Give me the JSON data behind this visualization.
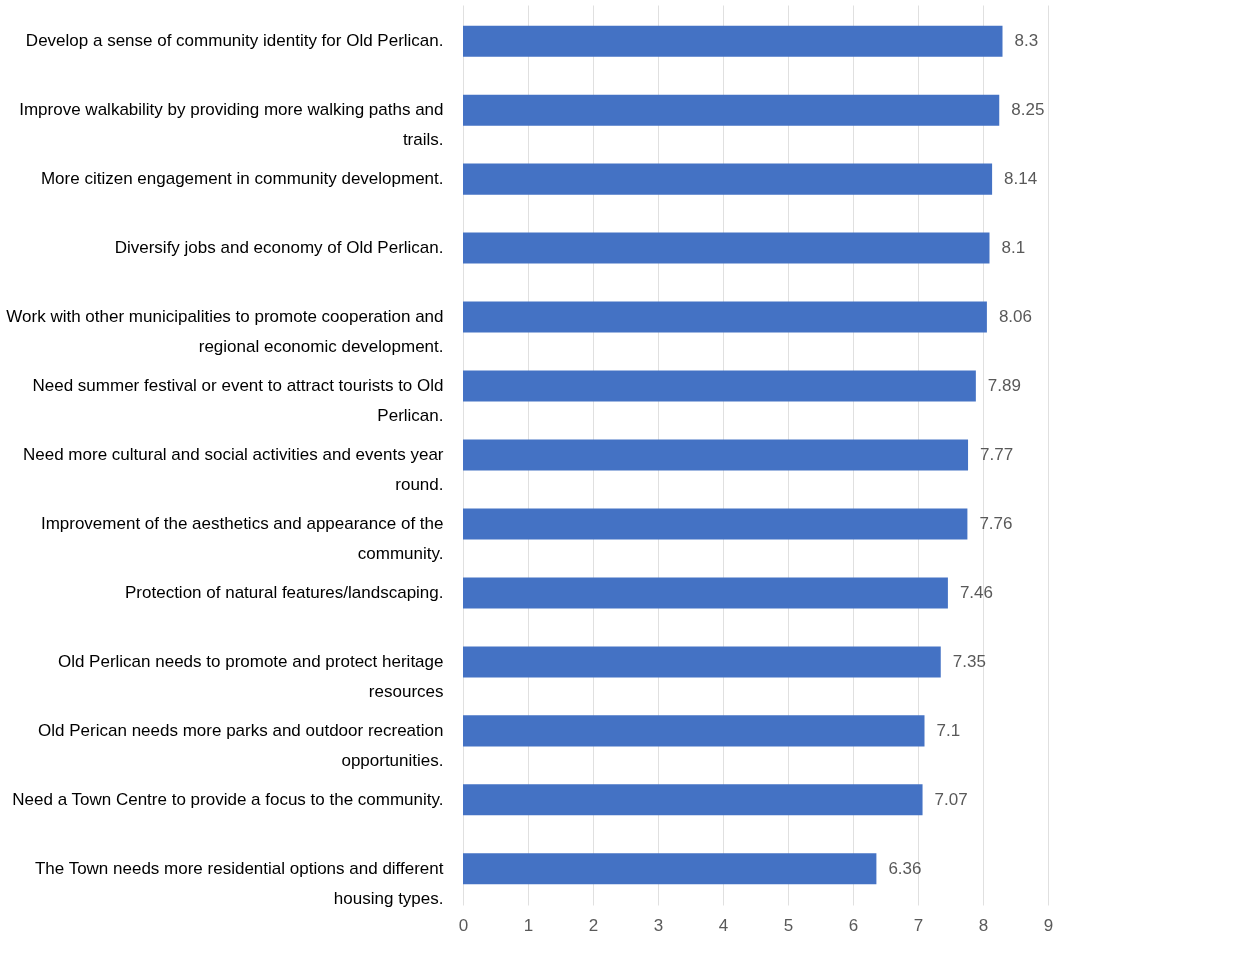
{
  "chart_data": {
    "type": "bar",
    "orientation": "horizontal",
    "categories": [
      "Develop a sense of community identity for Old Perlican.",
      "Improve walkability by providing more walking paths and trails.",
      "More citizen engagement in community development.",
      "Diversify jobs and economy of Old Perlican.",
      "Work with other municipalities to promote cooperation and regional economic development.",
      "Need summer festival or event to attract tourists to Old Perlican.",
      "Need more cultural and social activities and events year round.",
      "Improvement of the aesthetics and appearance of the community.",
      "Protection of natural features/landscaping.",
      "Old Perlican needs to promote and protect heritage resources",
      "Old Perican needs more parks and outdoor recreation opportunities.",
      "Need a Town Centre to provide a focus to the community.",
      "The Town needs more residential options and different housing types."
    ],
    "values": [
      8.3,
      8.25,
      8.14,
      8.1,
      8.06,
      7.89,
      7.77,
      7.76,
      7.46,
      7.35,
      7.1,
      7.07,
      6.36
    ],
    "color": "#4472c4",
    "xlim": [
      0,
      9
    ],
    "xticks": [
      0,
      1,
      2,
      3,
      4,
      5,
      6,
      7,
      8,
      9
    ],
    "grid": "x",
    "data_labels": true
  }
}
